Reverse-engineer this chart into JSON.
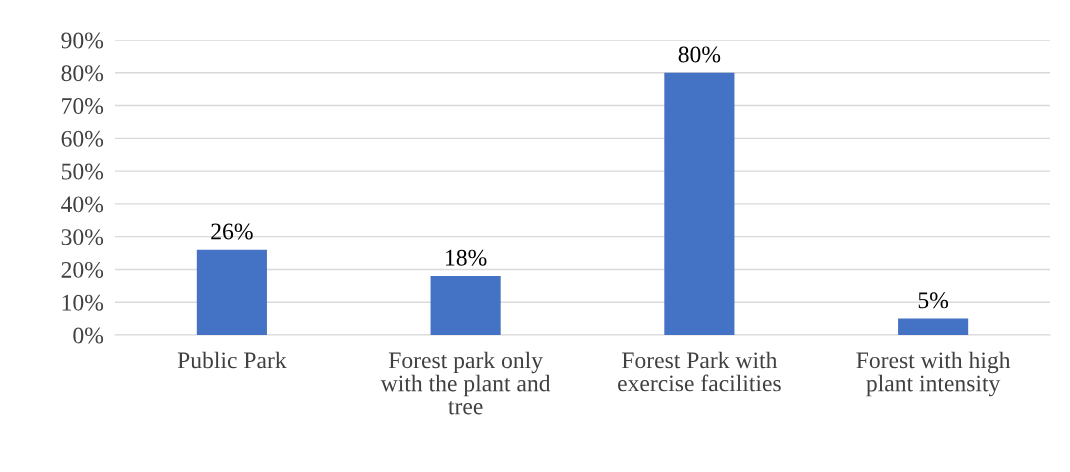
{
  "chart_data": {
    "type": "bar",
    "categories": [
      "Public Park",
      "Forest park only with the plant and tree",
      "Forest Park with exercise facilities",
      "Forest with high plant intensity"
    ],
    "values": [
      26,
      18,
      80,
      5
    ],
    "color": "#4472c4",
    "value_labels": [
      "26%",
      "18%",
      "80%",
      "5%"
    ],
    "ylim": [
      0,
      90
    ],
    "yticks": [
      {
        "value": 0,
        "label": "0%"
      },
      {
        "value": 10,
        "label": "10%"
      },
      {
        "value": 20,
        "label": "20%"
      },
      {
        "value": 30,
        "label": "30%"
      },
      {
        "value": 40,
        "label": "40%"
      },
      {
        "value": 50,
        "label": "50%"
      },
      {
        "value": 60,
        "label": "60%"
      },
      {
        "value": 70,
        "label": "70%"
      },
      {
        "value": 80,
        "label": "80%"
      },
      {
        "value": 90,
        "label": "90%"
      }
    ],
    "grid": "y",
    "legend": false
  }
}
